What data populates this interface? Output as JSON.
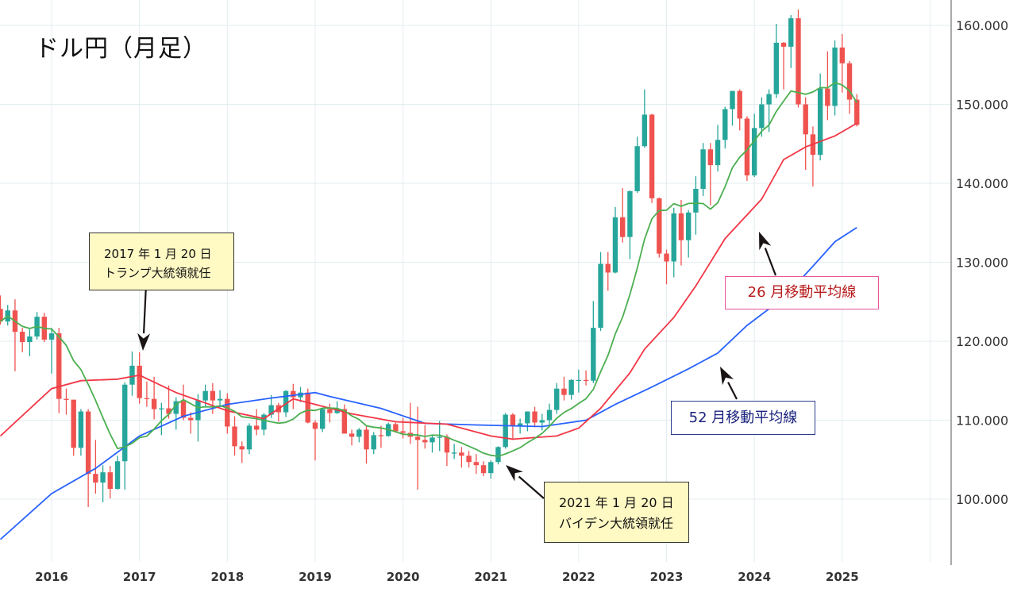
{
  "chart_data": {
    "type": "candlestick",
    "title": "ドル円（月足）",
    "xlabel": "",
    "ylabel": "",
    "ylim": [
      93.5,
      164
    ],
    "grid": true,
    "x_ticks": [
      "2016",
      "2017",
      "2018",
      "2019",
      "2020",
      "2021",
      "2022",
      "2023",
      "2024",
      "2025"
    ],
    "y_ticks": [
      "100.000",
      "110.000",
      "120.000",
      "130.000",
      "140.000",
      "150.000",
      "160.000"
    ],
    "colors": {
      "up": "#26a69a",
      "down": "#ef5350",
      "ma_short": "#4caf50",
      "ma26": "#f23645",
      "ma52": "#2962ff"
    },
    "ohlc_columns": [
      "month",
      "open",
      "high",
      "low",
      "close"
    ],
    "candles": [
      [
        "2015-06",
        124.1,
        125.8,
        122.1,
        122.5
      ],
      [
        "2015-07",
        122.5,
        124.6,
        122.0,
        123.9
      ],
      [
        "2015-08",
        123.9,
        125.3,
        116.2,
        121.2
      ],
      [
        "2015-09",
        121.2,
        121.7,
        118.6,
        119.9
      ],
      [
        "2015-10",
        119.9,
        121.5,
        118.1,
        120.6
      ],
      [
        "2015-11",
        120.6,
        123.7,
        120.2,
        123.1
      ],
      [
        "2015-12",
        123.1,
        123.6,
        119.9,
        120.2
      ],
      [
        "2016-01",
        120.2,
        121.7,
        115.9,
        121.0
      ],
      [
        "2016-02",
        121.0,
        121.7,
        110.9,
        112.7
      ],
      [
        "2016-03",
        112.7,
        114.0,
        110.7,
        112.6
      ],
      [
        "2016-04",
        112.6,
        112.3,
        105.5,
        106.5
      ],
      [
        "2016-05",
        106.5,
        111.4,
        105.5,
        111.1
      ],
      [
        "2016-06",
        111.1,
        111.4,
        99.0,
        103.2
      ],
      [
        "2016-07",
        103.2,
        107.5,
        100.7,
        102.1
      ],
      [
        "2016-08",
        102.1,
        104.3,
        99.6,
        103.4
      ],
      [
        "2016-09",
        103.4,
        104.2,
        100.1,
        101.3
      ],
      [
        "2016-10",
        101.3,
        105.5,
        101.2,
        104.8
      ],
      [
        "2016-11",
        104.8,
        114.8,
        101.2,
        114.5
      ],
      [
        "2016-12",
        114.5,
        118.7,
        113.1,
        116.9
      ],
      [
        "2017-01",
        116.9,
        118.6,
        112.1,
        112.8
      ],
      [
        "2017-02",
        112.8,
        114.9,
        111.7,
        112.7
      ],
      [
        "2017-03",
        112.7,
        115.5,
        110.1,
        111.4
      ],
      [
        "2017-04",
        111.4,
        112.2,
        108.1,
        111.5
      ],
      [
        "2017-05",
        111.5,
        114.4,
        110.2,
        110.8
      ],
      [
        "2017-06",
        110.8,
        112.9,
        108.8,
        112.4
      ],
      [
        "2017-07",
        112.4,
        114.5,
        110.0,
        110.3
      ],
      [
        "2017-08",
        110.3,
        111.0,
        108.3,
        110.0
      ],
      [
        "2017-09",
        110.0,
        113.3,
        107.3,
        112.5
      ],
      [
        "2017-10",
        112.5,
        114.5,
        111.7,
        113.7
      ],
      [
        "2017-11",
        113.7,
        114.7,
        110.8,
        112.5
      ],
      [
        "2017-12",
        112.5,
        113.8,
        111.9,
        112.7
      ],
      [
        "2018-01",
        112.7,
        113.4,
        108.3,
        109.2
      ],
      [
        "2018-02",
        109.2,
        110.5,
        105.5,
        106.7
      ],
      [
        "2018-03",
        106.7,
        107.3,
        104.6,
        106.3
      ],
      [
        "2018-04",
        106.3,
        109.6,
        105.7,
        109.3
      ],
      [
        "2018-05",
        109.3,
        111.4,
        108.1,
        108.8
      ],
      [
        "2018-06",
        108.8,
        110.9,
        108.1,
        110.7
      ],
      [
        "2018-07",
        110.7,
        113.2,
        110.3,
        111.9
      ],
      [
        "2018-08",
        111.9,
        112.2,
        109.8,
        111.0
      ],
      [
        "2018-09",
        111.0,
        113.8,
        110.4,
        113.7
      ],
      [
        "2018-10",
        113.7,
        114.6,
        111.4,
        112.9
      ],
      [
        "2018-11",
        112.9,
        114.2,
        112.3,
        113.5
      ],
      [
        "2018-12",
        113.5,
        114.0,
        109.6,
        109.7
      ],
      [
        "2019-01",
        109.7,
        110.0,
        104.9,
        108.9
      ],
      [
        "2019-02",
        108.9,
        111.5,
        108.5,
        111.4
      ],
      [
        "2019-03",
        111.4,
        112.1,
        109.7,
        110.9
      ],
      [
        "2019-04",
        110.9,
        112.4,
        110.8,
        111.4
      ],
      [
        "2019-05",
        111.4,
        112.0,
        108.3,
        108.3
      ],
      [
        "2019-06",
        108.3,
        108.8,
        106.8,
        107.9
      ],
      [
        "2019-07",
        107.9,
        109.0,
        107.2,
        108.8
      ],
      [
        "2019-08",
        108.8,
        109.3,
        104.5,
        106.3
      ],
      [
        "2019-09",
        106.3,
        108.5,
        105.7,
        108.1
      ],
      [
        "2019-10",
        108.1,
        109.3,
        106.5,
        108.0
      ],
      [
        "2019-11",
        108.0,
        109.7,
        107.9,
        109.5
      ],
      [
        "2019-12",
        109.5,
        109.7,
        108.4,
        108.6
      ],
      [
        "2020-01",
        108.6,
        110.3,
        107.7,
        108.4
      ],
      [
        "2020-02",
        108.4,
        112.2,
        107.0,
        107.9
      ],
      [
        "2020-03",
        107.9,
        111.7,
        101.2,
        107.5
      ],
      [
        "2020-04",
        107.5,
        109.4,
        106.4,
        107.2
      ],
      [
        "2020-05",
        107.2,
        108.1,
        105.9,
        107.8
      ],
      [
        "2020-06",
        107.8,
        109.9,
        106.1,
        107.9
      ],
      [
        "2020-07",
        107.9,
        108.2,
        104.2,
        105.9
      ],
      [
        "2020-08",
        105.9,
        107.0,
        105.1,
        105.9
      ],
      [
        "2020-09",
        105.9,
        106.6,
        104.0,
        105.5
      ],
      [
        "2020-10",
        105.5,
        106.1,
        104.0,
        104.7
      ],
      [
        "2020-11",
        104.7,
        105.7,
        103.2,
        104.3
      ],
      [
        "2020-12",
        104.3,
        104.8,
        102.9,
        103.3
      ],
      [
        "2021-01",
        103.3,
        104.9,
        102.6,
        104.7
      ],
      [
        "2021-02",
        104.7,
        106.7,
        104.4,
        106.6
      ],
      [
        "2021-03",
        106.6,
        110.9,
        106.4,
        110.7
      ],
      [
        "2021-04",
        110.7,
        110.9,
        107.5,
        109.3
      ],
      [
        "2021-05",
        109.3,
        110.2,
        108.3,
        109.6
      ],
      [
        "2021-06",
        109.6,
        111.1,
        108.6,
        111.1
      ],
      [
        "2021-07",
        111.1,
        111.7,
        109.1,
        109.7
      ],
      [
        "2021-08",
        109.7,
        110.8,
        108.7,
        110.0
      ],
      [
        "2021-09",
        110.0,
        112.1,
        109.1,
        111.3
      ],
      [
        "2021-10",
        111.3,
        114.7,
        110.8,
        114.0
      ],
      [
        "2021-11",
        114.0,
        115.5,
        112.5,
        113.2
      ],
      [
        "2021-12",
        113.2,
        115.2,
        112.6,
        115.1
      ],
      [
        "2022-01",
        115.1,
        116.4,
        113.5,
        115.1
      ],
      [
        "2022-02",
        115.1,
        116.3,
        114.4,
        115.0
      ],
      [
        "2022-03",
        115.0,
        125.1,
        114.7,
        121.7
      ],
      [
        "2022-04",
        121.7,
        131.3,
        121.3,
        129.8
      ],
      [
        "2022-05",
        129.8,
        131.3,
        126.4,
        128.7
      ],
      [
        "2022-06",
        128.7,
        137.0,
        128.6,
        135.7
      ],
      [
        "2022-07",
        135.7,
        139.4,
        132.5,
        133.2
      ],
      [
        "2022-08",
        133.2,
        139.1,
        130.4,
        139.0
      ],
      [
        "2022-09",
        139.0,
        145.9,
        138.8,
        144.7
      ],
      [
        "2022-10",
        144.7,
        151.9,
        144.5,
        148.7
      ],
      [
        "2022-11",
        148.7,
        148.8,
        137.5,
        138.1
      ],
      [
        "2022-12",
        138.1,
        138.2,
        130.6,
        131.1
      ],
      [
        "2023-01",
        131.1,
        131.6,
        127.2,
        130.1
      ],
      [
        "2023-02",
        130.1,
        136.9,
        128.1,
        136.2
      ],
      [
        "2023-03",
        136.2,
        137.9,
        129.6,
        132.8
      ],
      [
        "2023-04",
        132.8,
        136.6,
        130.6,
        136.3
      ],
      [
        "2023-05",
        136.3,
        140.9,
        133.5,
        139.3
      ],
      [
        "2023-06",
        139.3,
        145.1,
        138.4,
        144.3
      ],
      [
        "2023-07",
        144.3,
        145.1,
        137.2,
        142.3
      ],
      [
        "2023-08",
        142.3,
        147.4,
        141.5,
        145.5
      ],
      [
        "2023-09",
        145.5,
        149.7,
        144.4,
        149.4
      ],
      [
        "2023-10",
        149.4,
        151.7,
        147.3,
        151.7
      ],
      [
        "2023-11",
        151.7,
        151.9,
        146.7,
        148.2
      ],
      [
        "2023-12",
        148.2,
        148.5,
        140.3,
        141.0
      ],
      [
        "2024-01",
        141.0,
        148.8,
        140.8,
        147.0
      ],
      [
        "2024-02",
        147.0,
        150.9,
        145.9,
        150.0
      ],
      [
        "2024-03",
        150.0,
        151.9,
        146.5,
        151.3
      ],
      [
        "2024-04",
        151.3,
        160.2,
        150.8,
        157.8
      ],
      [
        "2024-05",
        157.8,
        157.9,
        151.9,
        157.3
      ],
      [
        "2024-06",
        157.3,
        161.3,
        154.6,
        160.9
      ],
      [
        "2024-07",
        160.9,
        162.0,
        149.6,
        150.0
      ],
      [
        "2024-08",
        150.0,
        150.9,
        141.7,
        146.2
      ],
      [
        "2024-09",
        146.2,
        147.2,
        139.6,
        143.6
      ],
      [
        "2024-10",
        143.6,
        153.9,
        142.9,
        152.0
      ],
      [
        "2024-11",
        152.0,
        156.7,
        148.0,
        149.8
      ],
      [
        "2024-12",
        149.8,
        158.1,
        148.6,
        157.2
      ],
      [
        "2025-01",
        157.2,
        158.9,
        151.5,
        155.2
      ],
      [
        "2025-02",
        155.2,
        155.5,
        148.8,
        150.6
      ],
      [
        "2025-03",
        150.6,
        151.3,
        147.2,
        147.4
      ]
    ],
    "ma_short_period": 9,
    "ma26": [
      [
        "2015-06",
        108.0
      ],
      [
        "2016-01",
        114.0
      ],
      [
        "2016-05",
        115.0
      ],
      [
        "2016-10",
        115.2
      ],
      [
        "2017-01",
        115.7
      ],
      [
        "2017-06",
        113.5
      ],
      [
        "2018-01",
        111.2
      ],
      [
        "2018-06",
        110.2
      ],
      [
        "2018-10",
        112.7
      ],
      [
        "2019-01",
        112.0
      ],
      [
        "2019-06",
        110.8
      ],
      [
        "2019-12",
        109.8
      ],
      [
        "2020-07",
        109.5
      ],
      [
        "2021-01",
        108.0
      ],
      [
        "2021-04",
        107.6
      ],
      [
        "2021-10",
        108.0
      ],
      [
        "2022-01",
        109.0
      ],
      [
        "2022-04",
        111.5
      ],
      [
        "2022-08",
        116.0
      ],
      [
        "2022-10",
        119.0
      ],
      [
        "2023-02",
        123.0
      ],
      [
        "2023-05",
        127.0
      ],
      [
        "2023-09",
        133.0
      ],
      [
        "2024-02",
        138.0
      ],
      [
        "2024-05",
        143.0
      ],
      [
        "2024-08",
        144.6
      ],
      [
        "2024-12",
        146.0
      ],
      [
        "2025-03",
        147.6
      ]
    ],
    "ma52": [
      [
        "2015-06",
        94.9
      ],
      [
        "2016-01",
        100.7
      ],
      [
        "2016-07",
        103.9
      ],
      [
        "2017-01",
        108.0
      ],
      [
        "2017-07",
        110.5
      ],
      [
        "2018-01",
        112.0
      ],
      [
        "2018-07",
        112.8
      ],
      [
        "2019-01",
        113.5
      ],
      [
        "2019-03",
        113.0
      ],
      [
        "2019-10",
        111.5
      ],
      [
        "2020-04",
        109.6
      ],
      [
        "2020-11",
        109.4
      ],
      [
        "2021-08",
        109.2
      ],
      [
        "2022-02",
        110.0
      ],
      [
        "2022-06",
        112.0
      ],
      [
        "2022-11",
        114.2
      ],
      [
        "2023-04",
        116.5
      ],
      [
        "2023-08",
        118.5
      ],
      [
        "2023-12",
        122.0
      ],
      [
        "2024-05",
        125.5
      ],
      [
        "2024-09",
        129.5
      ],
      [
        "2024-12",
        132.6
      ],
      [
        "2025-03",
        134.4
      ]
    ],
    "annotations": {
      "trump": {
        "line1": "2017 年 1 月 20 日",
        "line2": "トランプ大統領就任"
      },
      "biden": {
        "line1": "2021 年 1 月 20 日",
        "line2": "バイデン大統領就任"
      },
      "ma26_label": "26 月移動平均線",
      "ma52_label": "52 月移動平均線"
    }
  }
}
